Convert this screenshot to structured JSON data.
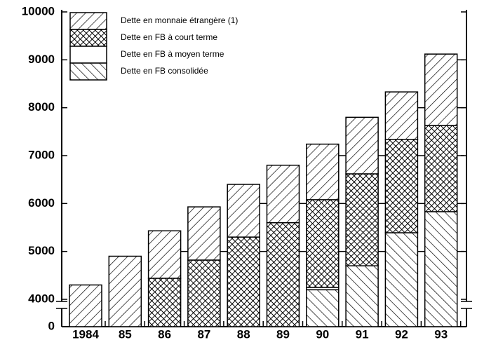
{
  "chart_data": {
    "type": "stacked-bar",
    "categories": [
      "1984",
      "85",
      "86",
      "87",
      "88",
      "89",
      "90",
      "91",
      "92",
      "93"
    ],
    "series": [
      {
        "name": "Dette en FB consolidée",
        "color": "#000000",
        "pattern": "hatch-back",
        "values": [
          null,
          null,
          null,
          null,
          null,
          null,
          4200,
          4700,
          5390,
          5830
        ]
      },
      {
        "name": "Dette en FB à moyen terme",
        "color": "#000000",
        "pattern": "none",
        "values": [
          null,
          null,
          null,
          null,
          null,
          null,
          50,
          null,
          null,
          null
        ]
      },
      {
        "name": "Dette en FB à court terme",
        "color": "#000000",
        "pattern": "crosshatch",
        "values": [
          null,
          null,
          4440,
          4820,
          5300,
          5600,
          1830,
          1920,
          1950,
          1800
        ]
      },
      {
        "name": "Dette en monnaie étrangère (1)",
        "color": "#000000",
        "pattern": "hatch-fwd",
        "values": [
          4300,
          4900,
          990,
          1110,
          1100,
          1200,
          1160,
          1180,
          990,
          1490
        ]
      }
    ],
    "ylim": [
      0,
      10000
    ],
    "yticks": [
      0,
      4000,
      5000,
      6000,
      7000,
      8000,
      9000,
      10000
    ],
    "axis_break": true
  }
}
